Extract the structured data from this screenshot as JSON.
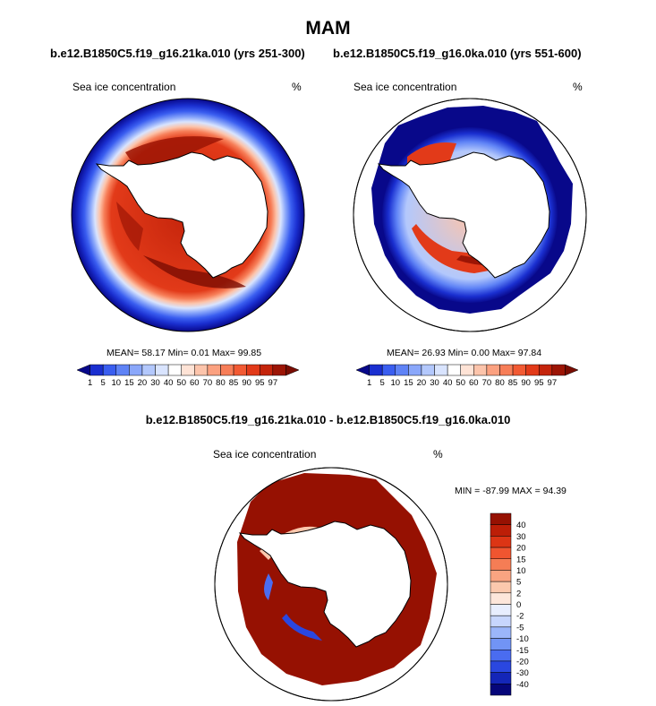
{
  "season": "MAM",
  "colors": {
    "ice_scale": [
      "#08088a",
      "#1a2fd0",
      "#3a5ef0",
      "#5f83f6",
      "#8aa7fa",
      "#b3c8fc",
      "#d9e4fe",
      "#ffffff",
      "#fee3d6",
      "#fcc4ab",
      "#fba180",
      "#f77e58",
      "#f25a33",
      "#e23a19",
      "#c4240b",
      "#9c1505",
      "#7a0d02"
    ],
    "diff_scale": [
      "#06067a",
      "#1426b8",
      "#2a47e0",
      "#4a6cf0",
      "#7194f5",
      "#9bb6fa",
      "#c7d6fd",
      "#e8eefe",
      "#fde6da",
      "#fbc8ad",
      "#f9a481",
      "#f57d55",
      "#f05530",
      "#dc3515",
      "#bc1e07",
      "#961102"
    ]
  },
  "chart_data": [
    {
      "type": "heatmap",
      "projection": "south-polar-stereographic",
      "title": "b.e12.B1850C5.f19_g16.21ka.010 (yrs 251-300)",
      "variable": "Sea ice concentration",
      "units": "%",
      "stats": {
        "mean": 58.17,
        "min": 0.01,
        "max": 99.85
      },
      "stats_text": "MEAN=  58.17  Min=   0.01  Max=  99.85",
      "colorbar_levels": [
        "1",
        "5",
        "10",
        "15",
        "20",
        "30",
        "40",
        "50",
        "60",
        "70",
        "80",
        "85",
        "90",
        "95",
        "97"
      ]
    },
    {
      "type": "heatmap",
      "projection": "south-polar-stereographic",
      "title": "b.e12.B1850C5.f19_g16.0ka.010 (yrs 551-600)",
      "variable": "Sea ice concentration",
      "units": "%",
      "stats": {
        "mean": 26.93,
        "min": 0.0,
        "max": 97.84
      },
      "stats_text": "MEAN=  26.93  Min=   0.00  Max=  97.84",
      "colorbar_levels": [
        "1",
        "5",
        "10",
        "15",
        "20",
        "30",
        "40",
        "50",
        "60",
        "70",
        "80",
        "85",
        "90",
        "95",
        "97"
      ]
    },
    {
      "type": "heatmap",
      "projection": "south-polar-stereographic",
      "title": "b.e12.B1850C5.f19_g16.21ka.010 - b.e12.B1850C5.f19_g16.0ka.010",
      "variable": "Sea ice concentration",
      "units": "%",
      "stats": {
        "min": -87.99,
        "max": 94.39
      },
      "stats_text": "MIN = -87.99 MAX =  94.39",
      "colorbar_levels": [
        "40",
        "30",
        "20",
        "15",
        "10",
        "5",
        "2",
        "0",
        "-2",
        "-5",
        "-10",
        "-15",
        "-20",
        "-30",
        "-40"
      ]
    }
  ]
}
